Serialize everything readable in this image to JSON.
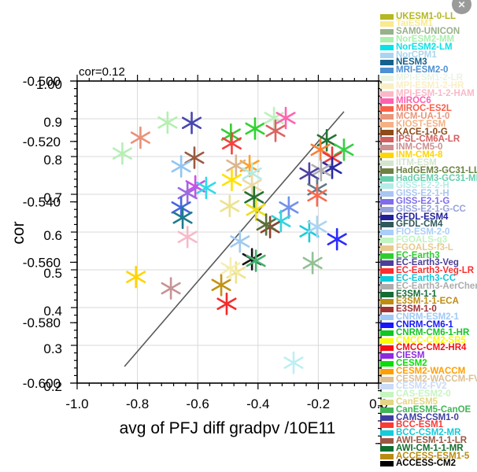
{
  "window": {
    "close_label": "✕"
  },
  "chart_data": {
    "type": "scatter",
    "annotation": "cor=0.12",
    "xlabel": "avg of PFJ diff gradpv /10E11",
    "ylabel": "cor",
    "xlim": [
      -1.0,
      0.0
    ],
    "ylim": [
      0.2,
      1.0
    ],
    "grid": true,
    "grid_color": "#d9d9d9",
    "axis_color": "#000000",
    "x_tick_labels": [
      "-1.0",
      "-0.8",
      "-0.6",
      "-0.4",
      "-0.2",
      "0.0"
    ],
    "y_tick_labels_primary": [
      "1.00",
      "0.9",
      "0.8",
      "0.7",
      "0.6",
      "0.5",
      "0.4",
      "0.3",
      "0.2"
    ],
    "y_tick_labels_secondary": [
      "-0.500",
      "-0.520",
      "-0.540",
      "-0.560",
      "-0.580",
      "-0.600"
    ],
    "fit_line": {
      "x1": -0.843,
      "y1": 0.244,
      "x2": -0.115,
      "y2": 0.919,
      "color": "#595959"
    },
    "marker_style": "asterisk",
    "points": [
      {
        "x": -0.7,
        "y": 0.89,
        "color": "#b4f0b0"
      },
      {
        "x": -0.62,
        "y": 0.889,
        "color": "#4747b0"
      },
      {
        "x": -0.79,
        "y": 0.85,
        "color": "#ea9179"
      },
      {
        "x": -0.85,
        "y": 0.808,
        "color": "#b6efb6"
      },
      {
        "x": -0.49,
        "y": 0.858,
        "color": "#35cc35"
      },
      {
        "x": -0.487,
        "y": 0.835,
        "color": "#f64040"
      },
      {
        "x": -0.41,
        "y": 0.874,
        "color": "#2ed32e"
      },
      {
        "x": -0.347,
        "y": 0.902,
        "color": "#baf2ba"
      },
      {
        "x": -0.308,
        "y": 0.902,
        "color": "#ff63b0"
      },
      {
        "x": -0.342,
        "y": 0.868,
        "color": "#da6464"
      },
      {
        "x": -0.611,
        "y": 0.797,
        "color": "#9a5a40"
      },
      {
        "x": -0.655,
        "y": 0.774,
        "color": "#92c5f2"
      },
      {
        "x": -0.428,
        "y": 0.775,
        "color": "#ffa126"
      },
      {
        "x": -0.473,
        "y": 0.776,
        "color": "#dab690"
      },
      {
        "x": -0.42,
        "y": 0.755,
        "color": "#b2ece6"
      },
      {
        "x": -0.487,
        "y": 0.738,
        "color": "#ffe100"
      },
      {
        "x": -0.42,
        "y": 0.724,
        "color": "#ecdaa6"
      },
      {
        "x": -0.608,
        "y": 0.721,
        "color": "#cf4fe8"
      },
      {
        "x": -0.572,
        "y": 0.717,
        "color": "#2fdbe6"
      },
      {
        "x": -0.634,
        "y": 0.703,
        "color": "#9b6ae0"
      },
      {
        "x": -0.655,
        "y": 0.665,
        "color": "#4566e0"
      },
      {
        "x": -0.413,
        "y": 0.692,
        "color": "#237030"
      },
      {
        "x": -0.494,
        "y": 0.669,
        "color": "#ece28f"
      },
      {
        "x": -0.407,
        "y": 0.659,
        "color": "#eede18"
      },
      {
        "x": -0.298,
        "y": 0.665,
        "color": "#7191ea"
      },
      {
        "x": -0.65,
        "y": 0.638,
        "color": "#1e7b8c"
      },
      {
        "x": -0.324,
        "y": 0.629,
        "color": "#30d5e0"
      },
      {
        "x": -0.36,
        "y": 0.613,
        "color": "#8f4130"
      },
      {
        "x": -0.373,
        "y": 0.62,
        "color": "#5c7038"
      },
      {
        "x": -0.634,
        "y": 0.587,
        "color": "#f7bac9"
      },
      {
        "x": -0.172,
        "y": 0.843,
        "color": "#227434"
      },
      {
        "x": -0.193,
        "y": 0.818,
        "color": "#f97f35"
      },
      {
        "x": -0.115,
        "y": 0.818,
        "color": "#37cf47"
      },
      {
        "x": -0.154,
        "y": 0.797,
        "color": "#ea3a3a"
      },
      {
        "x": -0.154,
        "y": 0.77,
        "color": "#2a2aa4"
      },
      {
        "x": -0.191,
        "y": 0.764,
        "color": "#b0b0b0"
      },
      {
        "x": -0.23,
        "y": 0.755,
        "color": "#4e42a0"
      },
      {
        "x": -0.204,
        "y": 0.713,
        "color": "#64798a"
      },
      {
        "x": -0.204,
        "y": 0.697,
        "color": "#fa6a50"
      },
      {
        "x": -0.42,
        "y": 0.528,
        "color": "#151515"
      },
      {
        "x": -0.407,
        "y": 0.524,
        "color": "#43b06e"
      },
      {
        "x": -0.473,
        "y": 0.493,
        "color": "#eee391"
      },
      {
        "x": -0.522,
        "y": 0.46,
        "color": "#c29214"
      },
      {
        "x": -0.504,
        "y": 0.41,
        "color": "#f62a2a"
      },
      {
        "x": -0.805,
        "y": 0.481,
        "color": "#ffd404"
      },
      {
        "x": -0.689,
        "y": 0.451,
        "color": "#c79395"
      },
      {
        "x": -0.491,
        "y": 0.504,
        "color": "#f5eeb4"
      },
      {
        "x": -0.219,
        "y": 0.518,
        "color": "#92c194"
      },
      {
        "x": -0.138,
        "y": 0.581,
        "color": "#2a2aff"
      },
      {
        "x": -0.23,
        "y": 0.602,
        "color": "#1fcada"
      },
      {
        "x": -0.204,
        "y": 0.614,
        "color": "#abd4f2"
      },
      {
        "x": -0.46,
        "y": 0.575,
        "color": "#a0c9f0"
      },
      {
        "x": -0.282,
        "y": 0.254,
        "color": "#bdeff3"
      }
    ],
    "legend_position": "right",
    "legend": [
      {
        "label": "UKESM1-0-LL",
        "color": "#b5b723"
      },
      {
        "label": "TaiESM1",
        "color": "#fae98f"
      },
      {
        "label": "SAM0-UNICON",
        "color": "#98b18b"
      },
      {
        "label": "NorESM2-MM",
        "color": "#abefae"
      },
      {
        "label": "NorESM2-LM",
        "color": "#0ae2e8"
      },
      {
        "label": "NorCPM1",
        "color": "#abd5ee"
      },
      {
        "label": "NESM3",
        "color": "#16618c"
      },
      {
        "label": "MRI-ESM2-0",
        "color": "#4e90d2"
      },
      {
        "label": "MPI-ESM1-2-LR",
        "color": "#eaf4e3"
      },
      {
        "label": "MPI-ESM1-2-HR",
        "color": "#f9efc5"
      },
      {
        "label": "MPI-ESM-1-2-HAM",
        "color": "#f9b9c8"
      },
      {
        "label": "MIROC6",
        "color": "#fd62af"
      },
      {
        "label": "MIROC-ES2L",
        "color": "#fa5f49"
      },
      {
        "label": "MCM-UA-1-0",
        "color": "#e9967b"
      },
      {
        "label": "KIOST-ESM",
        "color": "#f5b183"
      },
      {
        "label": "KACE-1-0-G",
        "color": "#8e4a18"
      },
      {
        "label": "IPSL-CM6A-LR",
        "color": "#d25f5f"
      },
      {
        "label": "INM-CM5-0",
        "color": "#cc8f92"
      },
      {
        "label": "INM-CM4-8",
        "color": "#ffd503"
      },
      {
        "label": "IITM-ESM",
        "color": "#d3e6cd"
      },
      {
        "label": "HadGEM3-GC31-LL",
        "color": "#6d8142"
      },
      {
        "label": "HadGEM3-GC31-MM",
        "color": "#64cfad"
      },
      {
        "label": "GISS-E2-2-H",
        "color": "#b3ede9"
      },
      {
        "label": "GISS-E2-1-H",
        "color": "#a9c6f2"
      },
      {
        "label": "GISS-E2-1-G",
        "color": "#7d6cee"
      },
      {
        "label": "GISS-E2-1-G-CC",
        "color": "#95a1db"
      },
      {
        "label": "GFDL-ESM4",
        "color": "#20209c"
      },
      {
        "label": "GFDL-CM4",
        "color": "#30585b"
      },
      {
        "label": "FIO-ESM-2-0",
        "color": "#aacefa"
      },
      {
        "label": "FGOALS-g3",
        "color": "#c0f4c0"
      },
      {
        "label": "FGOALS-f3-L",
        "color": "#e7ca8e"
      },
      {
        "label": "EC-Earth3",
        "color": "#30cc30"
      },
      {
        "label": "EC-Earth3-Veg",
        "color": "#4b4097"
      },
      {
        "label": "EC-Earth3-Veg-LR",
        "color": "#fb2d2d"
      },
      {
        "label": "EC-Earth3-CC",
        "color": "#0ec9d9"
      },
      {
        "label": "EC-Earth3-AerChem",
        "color": "#acacac"
      },
      {
        "label": "E3SM-1-1",
        "color": "#166c36"
      },
      {
        "label": "E3SM-1-1-ECA",
        "color": "#be8c10"
      },
      {
        "label": "E3SM-1-0",
        "color": "#a13232"
      },
      {
        "label": "CNRM-ESM2-1",
        "color": "#a0c9f7"
      },
      {
        "label": "CNRM-CM6-1",
        "color": "#1616ff"
      },
      {
        "label": "CNRM-CM6-1-HR",
        "color": "#12c622"
      },
      {
        "label": "CMCC-CM2-SR5",
        "color": "#fbfb06"
      },
      {
        "label": "CMCC-CM2-HR4",
        "color": "#f70d15"
      },
      {
        "label": "CIESM",
        "color": "#8d2ae0"
      },
      {
        "label": "CESM2",
        "color": "#0bdd0b"
      },
      {
        "label": "CESM2-WACCM",
        "color": "#ff9e02"
      },
      {
        "label": "CESM2-WACCM-FV2",
        "color": "#dcbf92"
      },
      {
        "label": "CESM2-FV2",
        "color": "#cadaf8"
      },
      {
        "label": "CAS-ESM2-0",
        "color": "#c6f5c0"
      },
      {
        "label": "CanESM5",
        "color": "#e2d586"
      },
      {
        "label": "CanESM5-CanOE",
        "color": "#40b657"
      },
      {
        "label": "CAMS-CSM1-0",
        "color": "#3e3ea0"
      },
      {
        "label": "BCC-ESM1",
        "color": "#fb3a36"
      },
      {
        "label": "BCC-CSM2-MR",
        "color": "#15ccd9"
      },
      {
        "label": "AWI-ESM-1-1-LR",
        "color": "#9b5744"
      },
      {
        "label": "AWI-CM-1-1-MR",
        "color": "#106e2e"
      },
      {
        "label": "ACCESS-ESM1-5",
        "color": "#b98b11"
      },
      {
        "label": "ACCESS-CM2",
        "color": "#010101"
      }
    ]
  }
}
